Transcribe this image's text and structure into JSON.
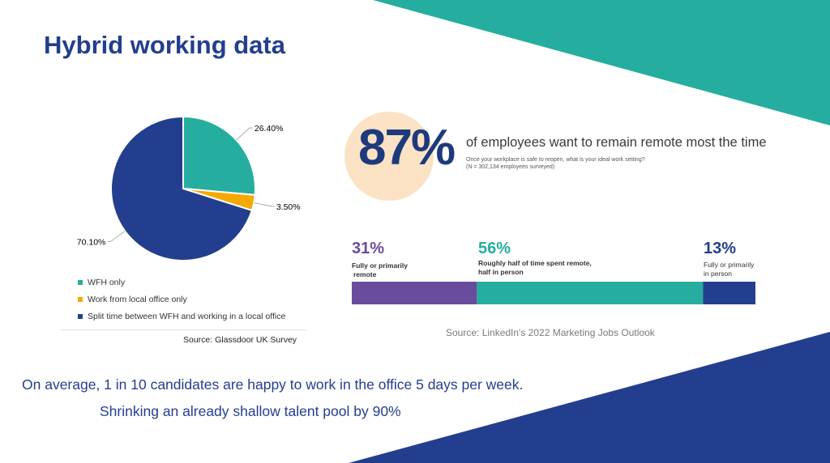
{
  "page": {
    "title": "Hybrid working data",
    "colors": {
      "teal": "#25ae9f",
      "navy": "#233e8e",
      "orange": "#f5a800",
      "purple": "#6a4c9c",
      "peach": "#fbe2c4"
    }
  },
  "chart_data": [
    {
      "type": "pie",
      "labels": [
        "WFH only",
        "Work from local office only",
        "Split time between WFH and working in a local office"
      ],
      "values": [
        26.4,
        3.5,
        70.1
      ],
      "value_labels": [
        "26.40%",
        "3.50%",
        "70.10%"
      ],
      "colors": [
        "#25ae9f",
        "#f5a800",
        "#233e8e"
      ],
      "legend_placement": "bottom",
      "source": "Source: Glassdoor UK Survey"
    },
    {
      "type": "bar",
      "stacked": true,
      "big_value": "87%",
      "headline": "of employees want to remain remote most the time",
      "question": "Once your workplace is safe to reopen, what is your ideal work setting?",
      "sample": "(N = 302,134 employees surveyed)",
      "segments": [
        {
          "pct_label": "31%",
          "value": 31,
          "desc": [
            "Fully or primarily",
            "remote"
          ],
          "color": "#6a4c9c"
        },
        {
          "pct_label": "56%",
          "value": 56,
          "desc": [
            "Roughly half of time spent remote,",
            "half in person"
          ],
          "color": "#25ae9f"
        },
        {
          "pct_label": "13%",
          "value": 13,
          "desc": [
            "Fully or primarily",
            "in person"
          ],
          "color": "#233e8e"
        }
      ],
      "source": "Source: LinkedIn's 2022 Marketing Jobs Outlook"
    }
  ],
  "footer": {
    "line1": "On average, 1 in 10 candidates are happy to work in the office 5 days per week.",
    "line2": "Shrinking an already shallow talent pool by 90%"
  }
}
